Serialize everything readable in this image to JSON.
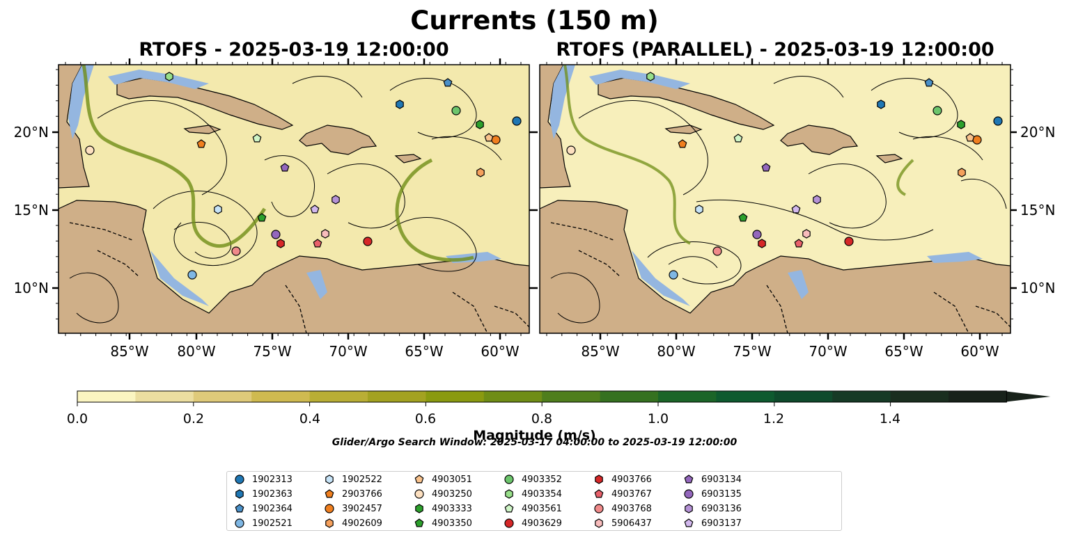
{
  "title": "Currents (150 m)",
  "panels": [
    {
      "title": "RTOFS - 2025-03-19 12:00:00"
    },
    {
      "title": "RTOFS (PARALLEL) - 2025-03-19 12:00:00"
    }
  ],
  "lon_ticks": [
    "85°W",
    "80°W",
    "75°W",
    "70°W",
    "65°W",
    "60°W"
  ],
  "lat_ticks": [
    "20°N",
    "15°N",
    "10°N"
  ],
  "colorbar": {
    "label": "Magnitude (m/s)",
    "ticks": [
      "0.0",
      "0.2",
      "0.4",
      "0.6",
      "0.8",
      "1.0",
      "1.2",
      "1.4"
    ],
    "colors": [
      "#fbf5c1",
      "#ecdea0",
      "#dfca7a",
      "#cfba50",
      "#b9ae35",
      "#a3a221",
      "#8a9a10",
      "#6f8d16",
      "#4f7e1d",
      "#357120",
      "#1b6528",
      "#0e5a2f",
      "#0f4a2c",
      "#163a26",
      "#1a2e1f",
      "#18221a"
    ]
  },
  "search_window": "Glider/Argo Search Window: 2025-03-17 04:00:00 to 2025-03-19 12:00:00",
  "legend": [
    {
      "id": "1902313",
      "color": "#1f77b4",
      "shape": "circle"
    },
    {
      "id": "1902363",
      "color": "#1f77b4",
      "shape": "hexagon"
    },
    {
      "id": "1902364",
      "color": "#4a90c8",
      "shape": "pentagon"
    },
    {
      "id": "1902521",
      "color": "#7fb7e4",
      "shape": "circle"
    },
    {
      "id": "1902522",
      "color": "#c6e3f7",
      "shape": "hexagon"
    },
    {
      "id": "2903766",
      "color": "#f07f1f",
      "shape": "pentagon"
    },
    {
      "id": "3902457",
      "color": "#f07f1f",
      "shape": "circle"
    },
    {
      "id": "4902609",
      "color": "#f5a05c",
      "shape": "hexagon"
    },
    {
      "id": "4903051",
      "color": "#f9c28c",
      "shape": "pentagon"
    },
    {
      "id": "4903250",
      "color": "#fde0c0",
      "shape": "circle"
    },
    {
      "id": "4903333",
      "color": "#2ca02c",
      "shape": "hexagon"
    },
    {
      "id": "4903350",
      "color": "#2ca02c",
      "shape": "pentagon"
    },
    {
      "id": "4903352",
      "color": "#6cc56c",
      "shape": "circle"
    },
    {
      "id": "4903354",
      "color": "#98df8a",
      "shape": "hexagon"
    },
    {
      "id": "4903561",
      "color": "#cff5c7",
      "shape": "pentagon"
    },
    {
      "id": "4903629",
      "color": "#d62728",
      "shape": "circle"
    },
    {
      "id": "4903766",
      "color": "#d62728",
      "shape": "hexagon"
    },
    {
      "id": "4903767",
      "color": "#e8606a",
      "shape": "pentagon"
    },
    {
      "id": "4903768",
      "color": "#f08a8a",
      "shape": "circle"
    },
    {
      "id": "5906437",
      "color": "#f8bcbc",
      "shape": "hexagon"
    },
    {
      "id": "6903134",
      "color": "#9467bd",
      "shape": "pentagon"
    },
    {
      "id": "6903135",
      "color": "#9467bd",
      "shape": "circle"
    },
    {
      "id": "6903136",
      "color": "#b592d6",
      "shape": "hexagon"
    },
    {
      "id": "6903137",
      "color": "#d2b8ee",
      "shape": "pentagon"
    }
  ]
}
